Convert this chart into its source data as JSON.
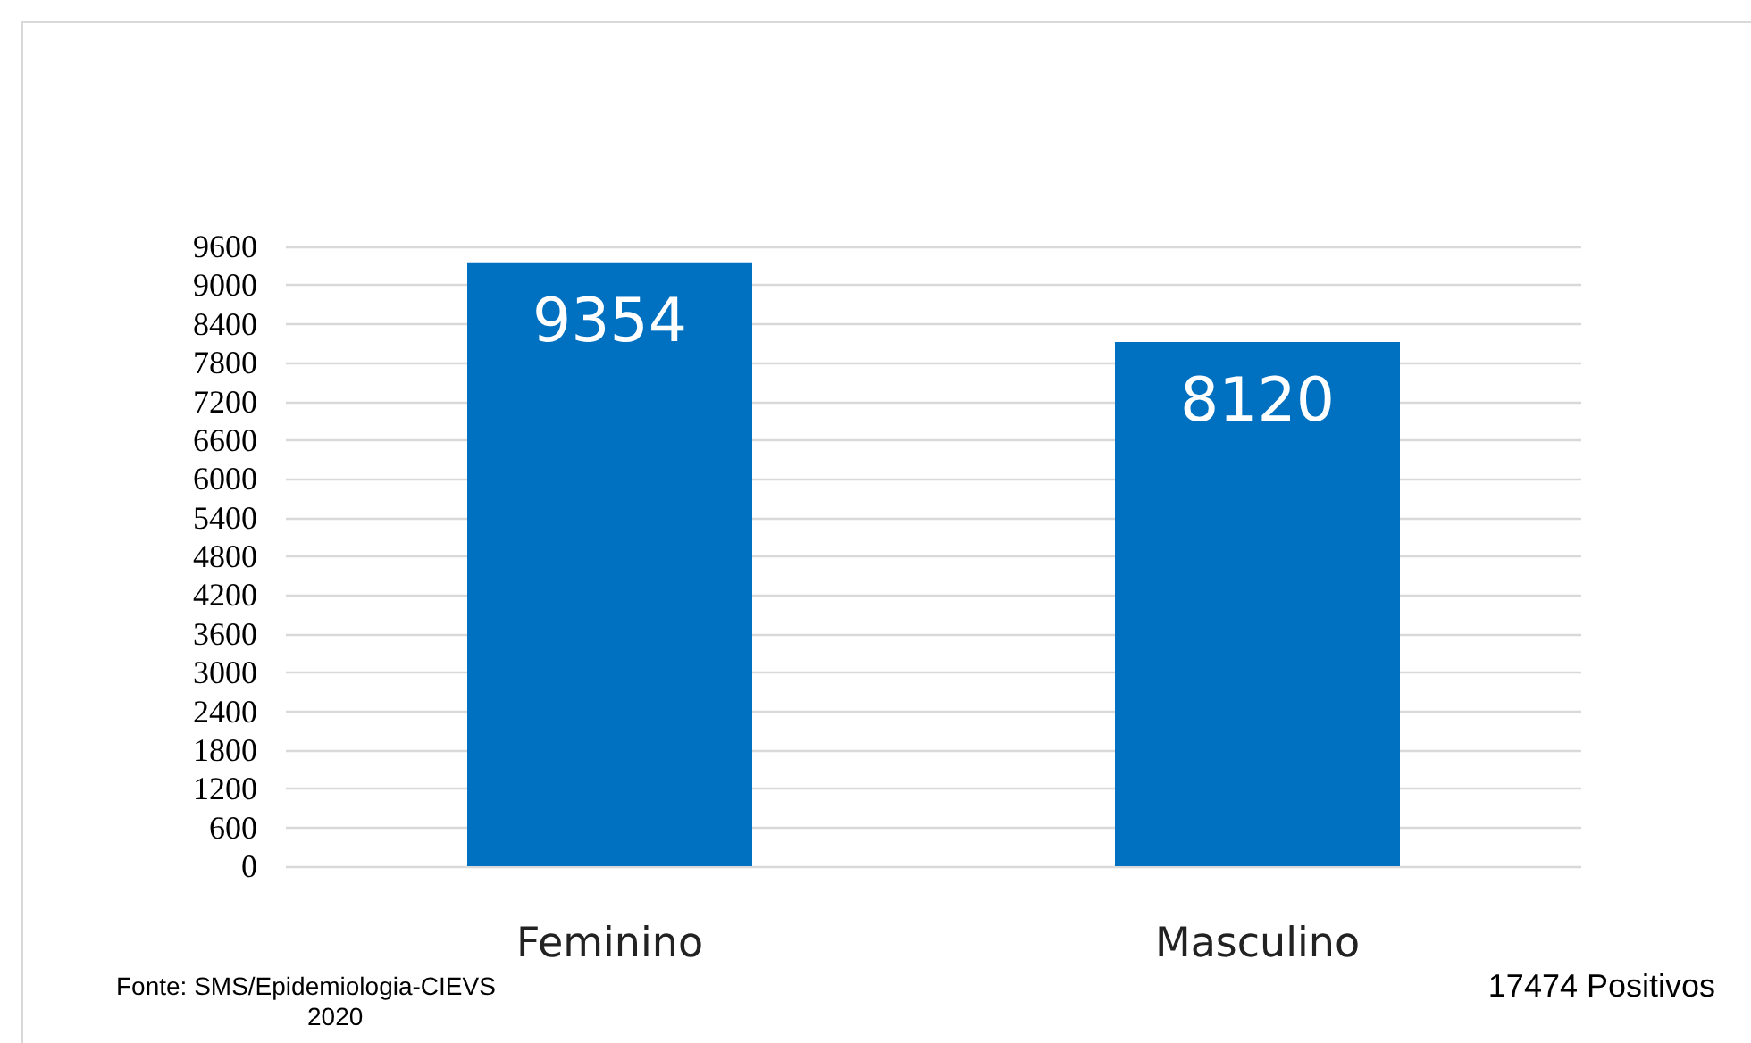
{
  "chart_data": {
    "type": "bar",
    "categories": [
      "Feminino",
      "Masculino"
    ],
    "values": [
      9354,
      8120
    ],
    "color": "#0070c0",
    "ylim": [
      0,
      9600
    ],
    "yticks": [
      0,
      600,
      1200,
      1800,
      2400,
      3000,
      3600,
      4200,
      4800,
      5400,
      6000,
      6600,
      7200,
      7800,
      8400,
      9000,
      9600
    ],
    "grid": "y",
    "data_labels": true,
    "annotations": [
      "Fonte: SMS/Epidemiologia-CIEVS",
      "2020",
      "17474 Positivos"
    ]
  }
}
